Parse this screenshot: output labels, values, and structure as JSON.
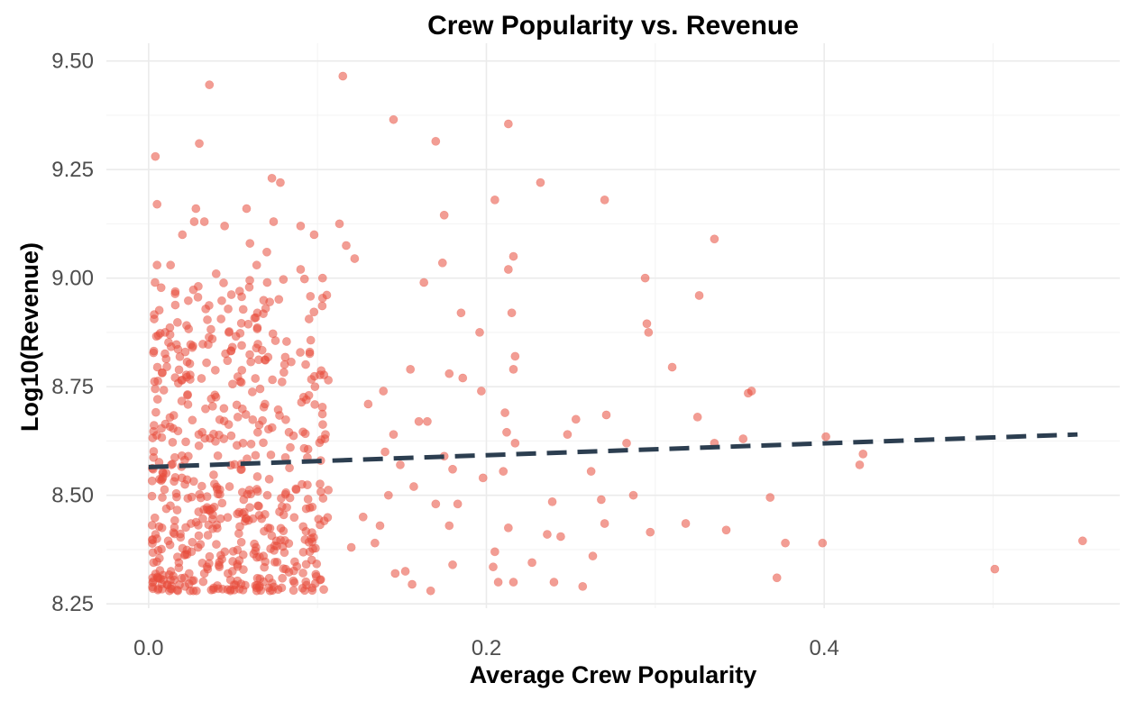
{
  "chart_data": {
    "type": "scatter",
    "title": "Crew Popularity vs. Revenue",
    "xlabel": "Average Crew Popularity",
    "ylabel": "Log10(Revenue)",
    "xlim": [
      -0.025,
      0.575
    ],
    "ylim": [
      8.24,
      9.52
    ],
    "x_ticks": [
      0.0,
      0.2,
      0.4
    ],
    "x_tick_labels": [
      "0.0",
      "0.2",
      "0.4"
    ],
    "y_ticks": [
      8.25,
      8.5,
      8.75,
      9.0,
      9.25,
      9.5
    ],
    "y_tick_labels": [
      "8.25",
      "8.50",
      "8.75",
      "9.00",
      "9.25",
      "9.50"
    ],
    "grid": true,
    "legend": "none",
    "point_color": "#e74c3c",
    "point_alpha": 0.55,
    "trend_color": "#2c3e50",
    "trend_style": "dashed",
    "trend_line": {
      "x": [
        0.0,
        0.55
      ],
      "y": [
        8.565,
        8.64
      ]
    },
    "points": [
      [
        0.004,
        9.28
      ],
      [
        0.036,
        9.445
      ],
      [
        0.115,
        9.465
      ],
      [
        0.145,
        9.365
      ],
      [
        0.213,
        9.355
      ],
      [
        0.03,
        9.31
      ],
      [
        0.17,
        9.315
      ],
      [
        0.005,
        9.17
      ],
      [
        0.073,
        9.23
      ],
      [
        0.078,
        9.22
      ],
      [
        0.232,
        9.22
      ],
      [
        0.205,
        9.18
      ],
      [
        0.27,
        9.18
      ],
      [
        0.028,
        9.16
      ],
      [
        0.033,
        9.13
      ],
      [
        0.027,
        9.13
      ],
      [
        0.058,
        9.16
      ],
      [
        0.074,
        9.13
      ],
      [
        0.045,
        9.12
      ],
      [
        0.09,
        9.12
      ],
      [
        0.113,
        9.125
      ],
      [
        0.175,
        9.145
      ],
      [
        0.02,
        9.1
      ],
      [
        0.098,
        9.1
      ],
      [
        0.335,
        9.09
      ],
      [
        0.06,
        9.08
      ],
      [
        0.117,
        9.075
      ],
      [
        0.216,
        9.05
      ],
      [
        0.005,
        9.03
      ],
      [
        0.013,
        9.03
      ],
      [
        0.07,
        9.06
      ],
      [
        0.122,
        9.045
      ],
      [
        0.174,
        9.035
      ],
      [
        0.213,
        9.02
      ],
      [
        0.294,
        9.0
      ],
      [
        0.04,
        9.01
      ],
      [
        0.064,
        9.03
      ],
      [
        0.09,
        9.02
      ],
      [
        0.103,
        9.0
      ],
      [
        0.163,
        8.99
      ],
      [
        0.326,
        8.96
      ],
      [
        0.31,
        8.795
      ],
      [
        0.325,
        8.68
      ],
      [
        0.296,
        8.875
      ],
      [
        0.295,
        8.895
      ],
      [
        0.335,
        8.62
      ],
      [
        0.357,
        8.74
      ],
      [
        0.352,
        8.63
      ],
      [
        0.355,
        8.735
      ],
      [
        0.368,
        8.495
      ],
      [
        0.377,
        8.39
      ],
      [
        0.399,
        8.39
      ],
      [
        0.401,
        8.635
      ],
      [
        0.421,
        8.57
      ],
      [
        0.423,
        8.595
      ],
      [
        0.501,
        8.33
      ],
      [
        0.553,
        8.395
      ],
      [
        0.372,
        8.31
      ],
      [
        0.342,
        8.42
      ],
      [
        0.318,
        8.435
      ],
      [
        0.297,
        8.415
      ],
      [
        0.287,
        8.5
      ],
      [
        0.283,
        8.62
      ],
      [
        0.271,
        8.685
      ],
      [
        0.27,
        8.435
      ],
      [
        0.268,
        8.49
      ],
      [
        0.262,
        8.555
      ],
      [
        0.263,
        8.36
      ],
      [
        0.257,
        8.29
      ],
      [
        0.253,
        8.675
      ],
      [
        0.248,
        8.64
      ],
      [
        0.244,
        8.405
      ],
      [
        0.239,
        8.485
      ],
      [
        0.236,
        8.41
      ],
      [
        0.24,
        8.3
      ],
      [
        0.227,
        8.345
      ],
      [
        0.217,
        8.62
      ],
      [
        0.216,
        8.79
      ],
      [
        0.217,
        8.82
      ],
      [
        0.215,
        8.92
      ],
      [
        0.212,
        8.645
      ],
      [
        0.211,
        8.69
      ],
      [
        0.21,
        8.555
      ],
      [
        0.213,
        8.425
      ],
      [
        0.205,
        8.37
      ],
      [
        0.204,
        8.335
      ],
      [
        0.207,
        8.3
      ],
      [
        0.216,
        8.3
      ],
      [
        0.198,
        8.54
      ],
      [
        0.197,
        8.74
      ],
      [
        0.196,
        8.875
      ],
      [
        0.185,
        8.92
      ],
      [
        0.186,
        8.77
      ],
      [
        0.178,
        8.78
      ],
      [
        0.175,
        8.59
      ],
      [
        0.183,
        8.48
      ],
      [
        0.18,
        8.34
      ],
      [
        0.178,
        8.43
      ],
      [
        0.17,
        8.48
      ],
      [
        0.167,
        8.28
      ],
      [
        0.165,
        8.67
      ],
      [
        0.16,
        8.67
      ],
      [
        0.157,
        8.52
      ],
      [
        0.149,
        8.57
      ],
      [
        0.152,
        8.325
      ],
      [
        0.156,
        8.295
      ],
      [
        0.145,
        8.64
      ],
      [
        0.146,
        8.32
      ],
      [
        0.139,
        8.74
      ],
      [
        0.14,
        8.6
      ],
      [
        0.142,
        8.5
      ],
      [
        0.137,
        8.43
      ],
      [
        0.134,
        8.39
      ],
      [
        0.13,
        8.71
      ],
      [
        0.127,
        8.45
      ],
      [
        0.12,
        8.38
      ],
      [
        0.155,
        8.79
      ],
      [
        0.18,
        8.56
      ]
    ]
  }
}
